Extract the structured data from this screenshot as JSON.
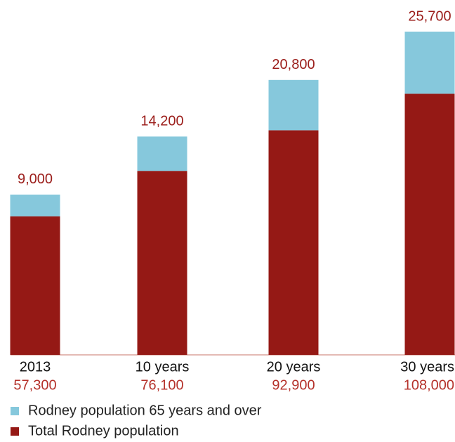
{
  "chart_data": {
    "type": "stacked-bar",
    "categories": [
      "2013",
      "10 years",
      "20 years",
      "30 years"
    ],
    "series": [
      {
        "name": "Total Rodney population",
        "color": "#951915",
        "values": [
          57300,
          76100,
          92900,
          108000
        ],
        "value_labels": [
          "57,300",
          "76,100",
          "92,900",
          "108,000"
        ]
      },
      {
        "name": "Rodney population 65 years and over",
        "color": "#86c8dc",
        "values": [
          9000,
          14200,
          20800,
          25700
        ],
        "value_labels": [
          "9,000",
          "14,200",
          "20,800",
          "25,700"
        ]
      }
    ]
  }
}
